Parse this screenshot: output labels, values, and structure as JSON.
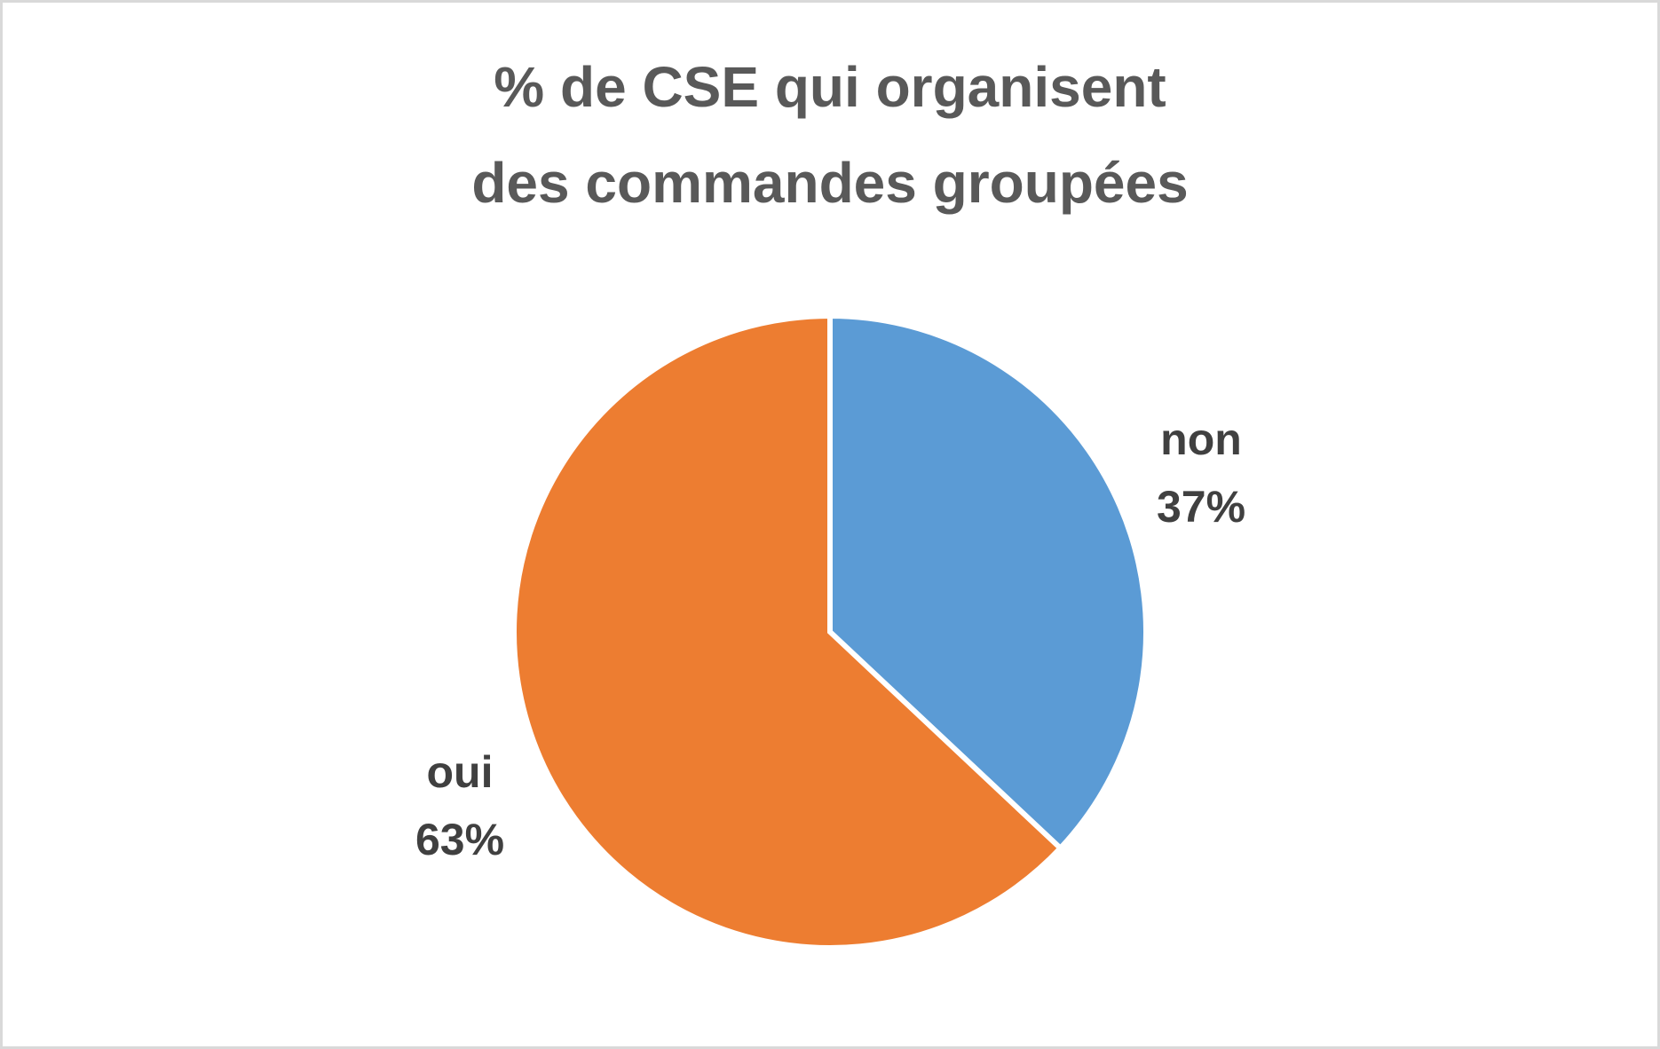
{
  "chart_data": {
    "type": "pie",
    "title": "% de CSE qui organisent des commandes groupées",
    "title_lines": [
      "% de CSE qui organisent",
      "des commandes groupées"
    ],
    "categories": [
      "non",
      "oui"
    ],
    "values": [
      37,
      63
    ],
    "value_labels": [
      "37%",
      "63%"
    ],
    "colors": [
      "#5b9bd5",
      "#ed7d31"
    ],
    "start_angle": "12 o'clock, clockwise",
    "legend": "none (data labels outside slices)"
  },
  "slices": [
    {
      "label": "non",
      "percent": "37%",
      "color": "#5b9bd5"
    },
    {
      "label": "oui",
      "percent": "63%",
      "color": "#ed7d31"
    }
  ]
}
